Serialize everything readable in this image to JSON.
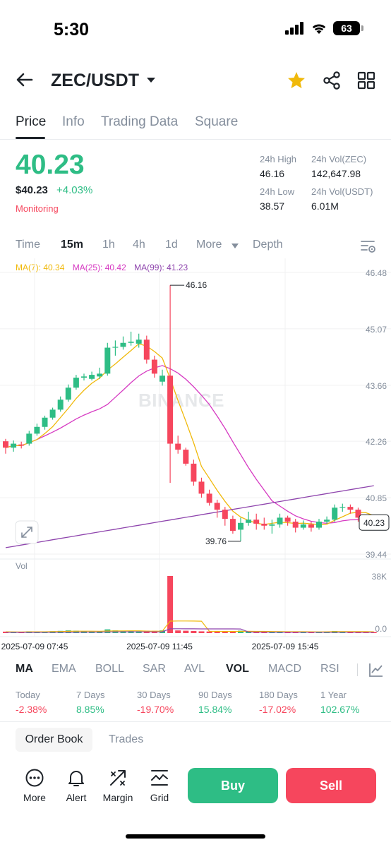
{
  "status_bar": {
    "time": "5:30",
    "battery": "63"
  },
  "header": {
    "pair": "ZEC/USDT",
    "back_icon": "back-arrow-icon",
    "favorite_icon": "star-icon",
    "share_icon": "share-icon",
    "grid_icon": "grid-icon"
  },
  "tabs": [
    {
      "label": "Price",
      "active": true
    },
    {
      "label": "Info",
      "active": false
    },
    {
      "label": "Trading Data",
      "active": false
    },
    {
      "label": "Square",
      "active": false
    }
  ],
  "price": {
    "last": "40.23",
    "usd": "$40.23",
    "change": "+4.03%",
    "status": "Monitoring",
    "high_label": "24h High",
    "high": "46.16",
    "low_label": "24h Low",
    "low": "38.57",
    "vol_zec_label": "24h Vol(ZEC)",
    "vol_zec": "142,647.98",
    "vol_usdt_label": "24h Vol(USDT)",
    "vol_usdt": "6.01M"
  },
  "timeframes": {
    "items": [
      "Time",
      "15m",
      "1h",
      "4h",
      "1d",
      "More",
      "Depth"
    ],
    "selected": "15m"
  },
  "ma_legend": {
    "ma7": "MA(7): 40.34",
    "ma25": "MA(25): 40.42",
    "ma99": "MA(99): 41.23"
  },
  "watermark": "BINANCE",
  "chart_data": {
    "type": "candlestick",
    "interval": "15m",
    "y_ticks": [
      "46.48",
      "45.07",
      "43.66",
      "42.26",
      "40.85",
      "39.44"
    ],
    "x_ticks": [
      "2025-07-09 07:45",
      "2025-07-09 11:45",
      "2025-07-09 15:45"
    ],
    "vol_ticks": [
      "38K",
      "0.0"
    ],
    "vol_label": "Vol",
    "last_price": "40.23",
    "annotations": {
      "high": "46.16",
      "low": "39.76"
    },
    "ylim": [
      39.44,
      46.48
    ],
    "colors": {
      "up": "#2ebd85",
      "down": "#f6465d",
      "ma7": "#f0b90b",
      "ma25": "#d63ac2",
      "ma99": "#8e44ad"
    },
    "candles": [
      [
        42.26,
        42.1,
        42.32,
        41.95
      ],
      [
        42.1,
        42.2,
        42.28,
        42.0
      ],
      [
        42.18,
        42.15,
        42.25,
        42.08
      ],
      [
        42.2,
        42.45,
        42.52,
        42.15
      ],
      [
        42.45,
        42.62,
        42.7,
        42.4
      ],
      [
        42.62,
        42.85,
        42.9,
        42.55
      ],
      [
        42.85,
        43.05,
        43.1,
        42.8
      ],
      [
        43.05,
        43.3,
        43.38,
        43.0
      ],
      [
        43.3,
        43.6,
        43.68,
        43.25
      ],
      [
        43.6,
        43.85,
        43.92,
        43.55
      ],
      [
        43.85,
        43.88,
        43.95,
        43.78
      ],
      [
        43.82,
        43.92,
        44.0,
        43.78
      ],
      [
        43.88,
        43.95,
        44.1,
        43.82
      ],
      [
        43.95,
        44.6,
        44.72,
        43.9
      ],
      [
        44.6,
        44.62,
        44.78,
        44.4
      ],
      [
        44.62,
        44.72,
        44.88,
        44.55
      ],
      [
        44.72,
        44.75,
        45.0,
        44.65
      ],
      [
        44.7,
        44.8,
        44.95,
        44.6
      ],
      [
        44.8,
        44.3,
        44.9,
        44.2
      ],
      [
        44.3,
        43.95,
        44.4,
        43.85
      ],
      [
        43.75,
        43.9,
        44.05,
        43.65
      ],
      [
        43.9,
        42.2,
        46.16,
        41.22
      ],
      [
        42.2,
        42.05,
        42.4,
        41.95
      ],
      [
        42.05,
        41.7,
        42.1,
        41.65
      ],
      [
        41.7,
        41.25,
        41.8,
        41.15
      ],
      [
        41.25,
        40.95,
        41.35,
        40.85
      ],
      [
        40.95,
        40.72,
        41.05,
        40.65
      ],
      [
        40.72,
        40.55,
        40.8,
        40.35
      ],
      [
        40.55,
        40.32,
        40.62,
        40.15
      ],
      [
        40.32,
        40.02,
        40.4,
        39.95
      ],
      [
        40.05,
        40.22,
        40.35,
        39.76
      ],
      [
        40.22,
        40.3,
        40.5,
        40.15
      ],
      [
        40.3,
        40.2,
        40.45,
        40.05
      ],
      [
        40.2,
        40.15,
        40.35,
        40.05
      ],
      [
        40.15,
        40.18,
        40.3,
        39.95
      ],
      [
        40.18,
        40.35,
        40.45,
        40.1
      ],
      [
        40.35,
        40.25,
        40.4,
        40.15
      ],
      [
        40.25,
        40.1,
        40.32,
        39.98
      ],
      [
        40.1,
        40.18,
        40.28,
        40.05
      ],
      [
        40.18,
        40.1,
        40.25,
        40.0
      ],
      [
        40.1,
        40.25,
        40.32,
        40.05
      ],
      [
        40.25,
        40.3,
        40.38,
        40.2
      ],
      [
        40.3,
        40.6,
        40.68,
        40.25
      ],
      [
        40.6,
        40.62,
        40.7,
        40.5
      ],
      [
        40.62,
        40.55,
        40.68,
        40.45
      ],
      [
        40.55,
        40.35,
        40.6,
        40.25
      ],
      [
        40.35,
        40.25,
        40.42,
        40.15
      ],
      [
        40.25,
        40.23,
        40.3,
        40.18
      ]
    ],
    "volumes": [
      1.0,
      0.9,
      0.8,
      1.2,
      1.0,
      1.1,
      1.3,
      1.5,
      1.8,
      1.6,
      1.2,
      1.1,
      1.4,
      2.5,
      1.8,
      1.5,
      1.4,
      1.3,
      1.6,
      1.5,
      1.8,
      38,
      1.8,
      1.6,
      1.4,
      1.2,
      1.1,
      1.3,
      1.2,
      1.4,
      1.6,
      1.3,
      1.1,
      1.0,
      1.0,
      1.2,
      1.0,
      0.9,
      1.0,
      0.9,
      1.0,
      1.1,
      1.4,
      1.2,
      1.0,
      1.0,
      0.9,
      0.8
    ]
  },
  "indicators": {
    "items": [
      "MA",
      "EMA",
      "BOLL",
      "SAR",
      "AVL",
      "VOL",
      "MACD",
      "RSI"
    ],
    "active": [
      "MA",
      "VOL"
    ]
  },
  "performance": [
    {
      "label": "Today",
      "value": "-2.38%",
      "positive": false
    },
    {
      "label": "7 Days",
      "value": "8.85%",
      "positive": true
    },
    {
      "label": "30 Days",
      "value": "-19.70%",
      "positive": false
    },
    {
      "label": "90 Days",
      "value": "15.84%",
      "positive": true
    },
    {
      "label": "180 Days",
      "value": "-17.02%",
      "positive": false
    },
    {
      "label": "1 Year",
      "value": "102.67%",
      "positive": true
    }
  ],
  "order_tabs": {
    "order_book": "Order Book",
    "trades": "Trades"
  },
  "actions": {
    "more": "More",
    "alert": "Alert",
    "margin": "Margin",
    "grid": "Grid",
    "buy": "Buy",
    "sell": "Sell"
  }
}
